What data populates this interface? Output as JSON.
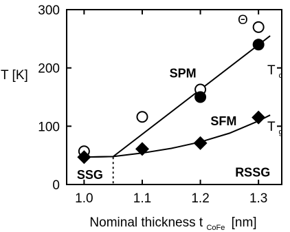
{
  "chart_data": {
    "type": "scatter",
    "xlabel_main": "Nominal thickness t",
    "xlabel_sub": "CoFe",
    "xlabel_unit": "[nm]",
    "ylabel": "T [K]",
    "xlim": [
      0.97,
      1.34
    ],
    "ylim": [
      0,
      300
    ],
    "xticks": [
      1.0,
      1.1,
      1.2,
      1.3
    ],
    "xtick_labels": [
      "1.0",
      "1.1",
      "1.2",
      "1.3"
    ],
    "yticks": [
      0,
      100,
      200,
      300
    ],
    "ytick_labels": [
      "0",
      "100",
      "200",
      "300"
    ],
    "grid": false,
    "series": [
      {
        "name": "Θ",
        "marker": "open-circle",
        "x": [
          1.0,
          1.1,
          1.2,
          1.3
        ],
        "y": [
          57,
          116,
          163,
          270
        ]
      },
      {
        "name": "T_c",
        "marker": "filled-circle",
        "x": [
          1.2,
          1.3
        ],
        "y": [
          150,
          240
        ]
      },
      {
        "name": "T_g",
        "marker": "filled-diamond",
        "x": [
          1.0,
          1.1,
          1.2,
          1.3
        ],
        "y": [
          47,
          61,
          71,
          115
        ]
      }
    ],
    "lines": [
      {
        "name": "Tc-fit",
        "type": "straight",
        "x": [
          1.0,
          1.05,
          1.32
        ],
        "y": [
          47,
          48,
          255
        ]
      },
      {
        "name": "Tg-fit",
        "type": "curve",
        "x": [
          1.0,
          1.05,
          1.1,
          1.15,
          1.2,
          1.25,
          1.3,
          1.32
        ],
        "y": [
          47,
          48,
          54,
          62,
          73,
          88,
          109,
          119
        ]
      }
    ],
    "boundary_x": 1.05,
    "region_labels": [
      {
        "text": "SPM",
        "x": 1.17,
        "y": 192
      },
      {
        "text": "SFM",
        "x": 1.24,
        "y": 110
      },
      {
        "text": "SSG",
        "x": 1.01,
        "y": 18
      },
      {
        "text": "RSSG",
        "x": 1.29,
        "y": 22
      }
    ],
    "curve_labels": {
      "theta": "Θ",
      "tc_main": "T",
      "tc_sub": "c",
      "tg_main": "T",
      "tg_sub": "g"
    }
  }
}
